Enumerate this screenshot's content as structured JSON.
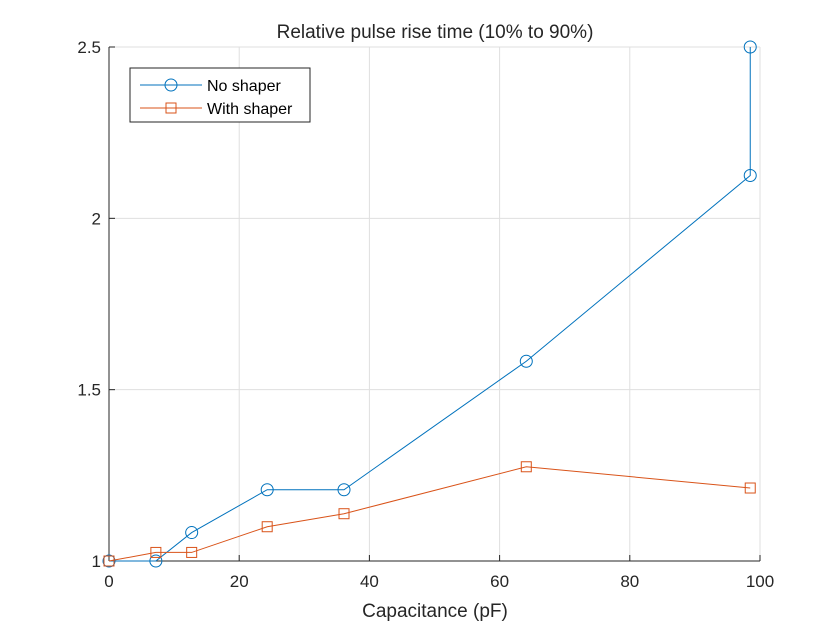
{
  "chart_data": {
    "type": "line",
    "title": "Relative pulse rise time (10% to 90%)",
    "xlabel": "Capacitance (pF)",
    "ylabel": "",
    "xlim": [
      0,
      100
    ],
    "ylim": [
      1,
      2.5
    ],
    "xticks": [
      0,
      20,
      40,
      60,
      80,
      100
    ],
    "yticks": [
      1,
      1.5,
      2,
      2.5
    ],
    "xtick_labels": [
      "0",
      "20",
      "40",
      "60",
      "80",
      "100"
    ],
    "ytick_labels": [
      "1",
      "1.5",
      "2",
      "2.5"
    ],
    "grid": true,
    "legend_position": "top-left",
    "series": [
      {
        "name": "No shaper",
        "color": "#0072BD",
        "marker": "circle",
        "x": [
          0,
          7.2,
          12.7,
          24.3,
          36.1,
          64.1,
          98.5,
          98.5
        ],
        "y": [
          1.0,
          1.0,
          1.083,
          1.208,
          1.208,
          1.583,
          2.125,
          2.5
        ]
      },
      {
        "name": "With shaper",
        "color": "#D95319",
        "marker": "square",
        "x": [
          0,
          7.2,
          12.7,
          24.3,
          36.1,
          64.1,
          98.5
        ],
        "y": [
          1.0,
          1.025,
          1.025,
          1.1,
          1.138,
          1.275,
          1.213
        ]
      }
    ]
  }
}
